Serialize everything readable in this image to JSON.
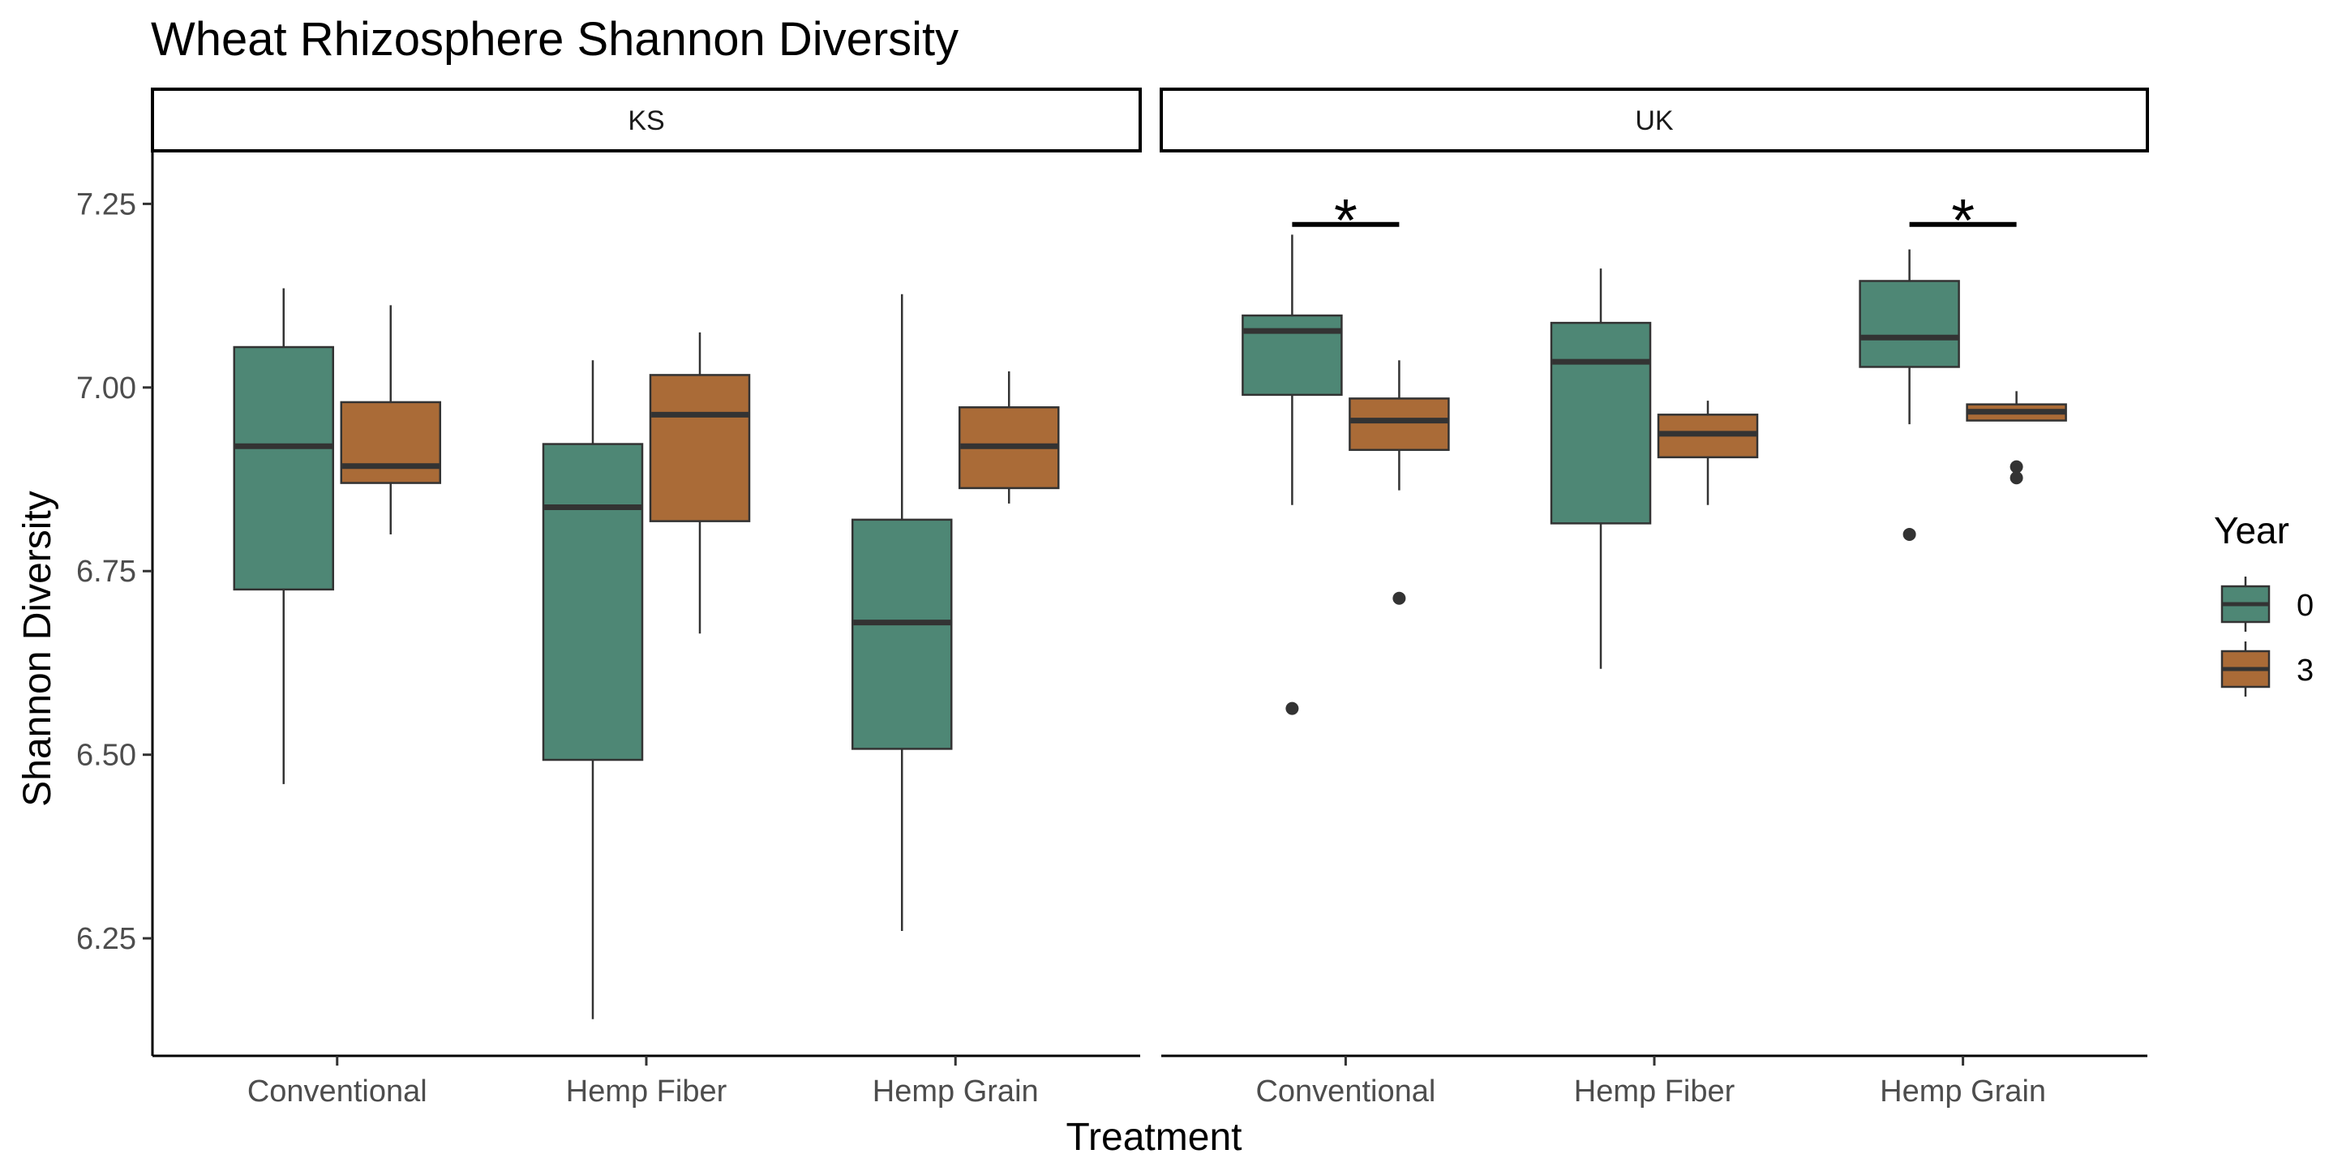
{
  "chart_data": {
    "type": "boxplot",
    "title": "Wheat Rhizosphere Shannon Diversity",
    "xlabel": "Treatment",
    "ylabel": "Shannon Diversity",
    "ylim": [
      6.09,
      7.32
    ],
    "yticks": [
      "6.25",
      "6.50",
      "6.75",
      "7.00",
      "7.25"
    ],
    "categories": [
      "Conventional",
      "Hemp Fiber",
      "Hemp Grain"
    ],
    "legend": {
      "title": "Year",
      "position": "right",
      "items": [
        {
          "label": "0",
          "color": "#4e8775"
        },
        {
          "label": "3",
          "color": "#aa6b37"
        }
      ]
    },
    "facets": [
      {
        "label": "KS",
        "groups": [
          {
            "category": "Conventional",
            "year": "0",
            "min": 6.46,
            "q1": 6.725,
            "median": 6.92,
            "q3": 7.055,
            "max": 7.135,
            "outliers": []
          },
          {
            "category": "Conventional",
            "year": "3",
            "min": 6.8,
            "q1": 6.87,
            "median": 6.893,
            "q3": 6.98,
            "max": 7.112,
            "outliers": []
          },
          {
            "category": "Hemp Fiber",
            "year": "0",
            "min": 6.14,
            "q1": 6.493,
            "median": 6.837,
            "q3": 6.923,
            "max": 7.037,
            "outliers": []
          },
          {
            "category": "Hemp Fiber",
            "year": "3",
            "min": 6.665,
            "q1": 6.818,
            "median": 6.963,
            "q3": 7.017,
            "max": 7.075,
            "outliers": []
          },
          {
            "category": "Hemp Grain",
            "year": "0",
            "min": 6.26,
            "q1": 6.508,
            "median": 6.68,
            "q3": 6.82,
            "max": 7.127,
            "outliers": []
          },
          {
            "category": "Hemp Grain",
            "year": "3",
            "min": 6.842,
            "q1": 6.863,
            "median": 6.92,
            "q3": 6.973,
            "max": 7.022,
            "outliers": []
          }
        ],
        "significance": []
      },
      {
        "label": "UK",
        "groups": [
          {
            "category": "Conventional",
            "year": "0",
            "min": 6.84,
            "q1": 6.99,
            "median": 7.077,
            "q3": 7.098,
            "max": 7.208,
            "outliers": [
              6.563
            ]
          },
          {
            "category": "Conventional",
            "year": "3",
            "min": 6.86,
            "q1": 6.915,
            "median": 6.955,
            "q3": 6.985,
            "max": 7.037,
            "outliers": [
              6.713
            ]
          },
          {
            "category": "Hemp Fiber",
            "year": "0",
            "min": 6.617,
            "q1": 6.815,
            "median": 7.035,
            "q3": 7.088,
            "max": 7.162,
            "outliers": []
          },
          {
            "category": "Hemp Fiber",
            "year": "3",
            "min": 6.84,
            "q1": 6.905,
            "median": 6.937,
            "q3": 6.963,
            "max": 6.982,
            "outliers": []
          },
          {
            "category": "Hemp Grain",
            "year": "0",
            "min": 6.95,
            "q1": 7.028,
            "median": 7.068,
            "q3": 7.145,
            "max": 7.188,
            "outliers": [
              6.8
            ]
          },
          {
            "category": "Hemp Grain",
            "year": "3",
            "min": 6.955,
            "q1": 6.955,
            "median": 6.967,
            "q3": 6.977,
            "max": 6.995,
            "outliers": [
              6.892,
              6.877
            ]
          }
        ],
        "significance": [
          {
            "category": "Conventional",
            "symbol": "*",
            "y": 7.222
          },
          {
            "category": "Hemp Grain",
            "symbol": "*",
            "y": 7.222
          }
        ]
      }
    ]
  }
}
